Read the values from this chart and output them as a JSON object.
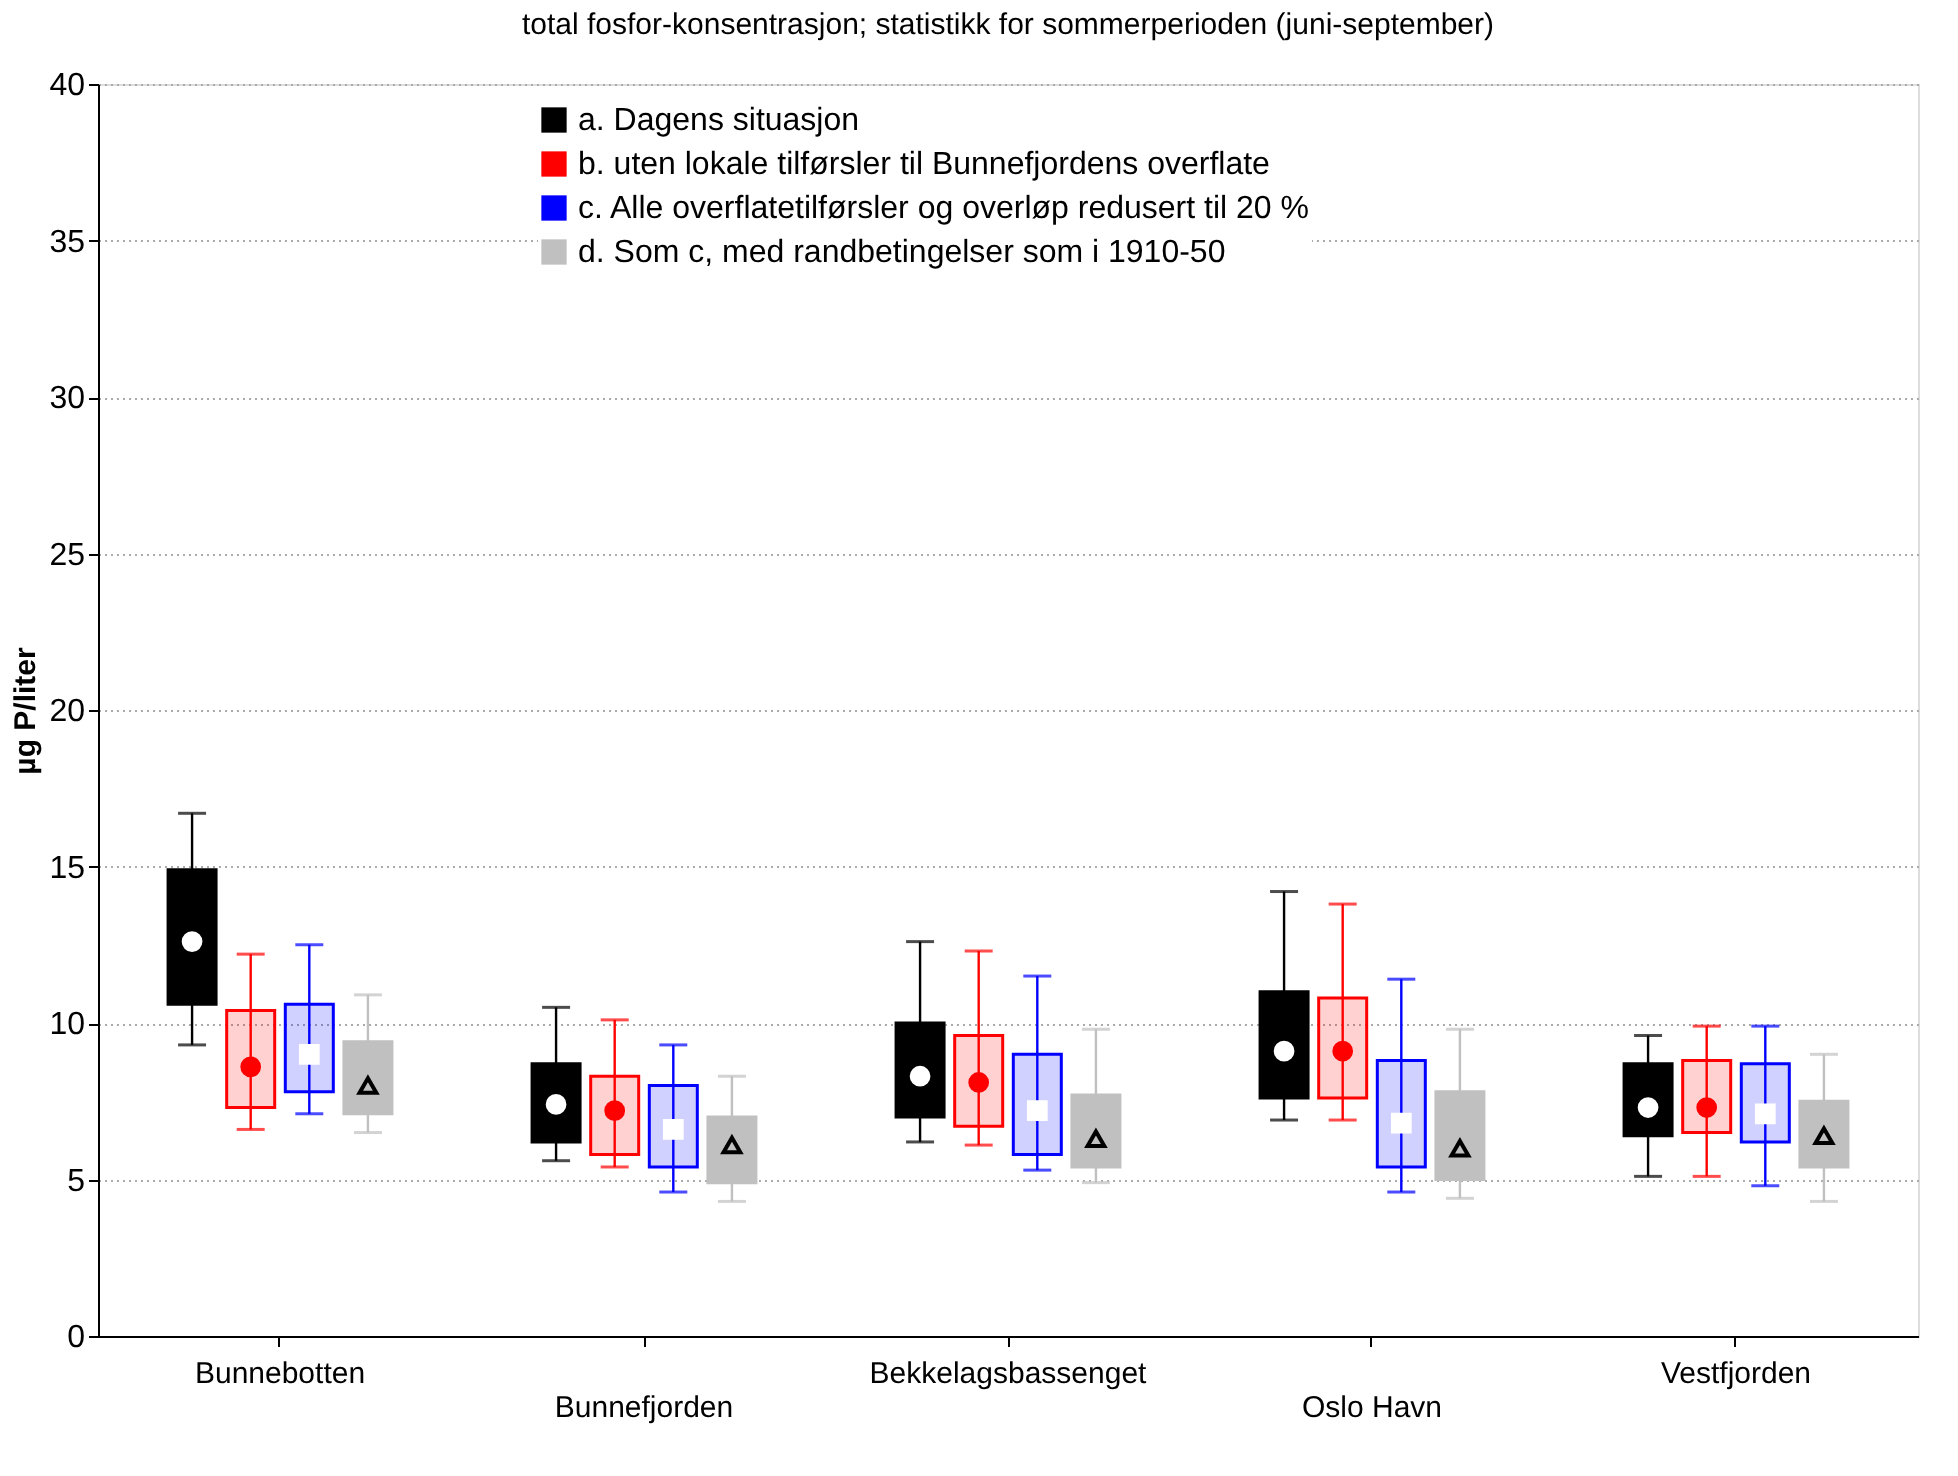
{
  "chart_data": {
    "type": "box",
    "title": "total fosfor-konsentrasjon; statistikk for sommerperioden (juni-september)",
    "ylabel": "µg P/liter",
    "categories": [
      "Bunnebotten",
      "Bunnefjorden",
      "Bekkelagsbassenget",
      "Oslo Havn",
      "Vestfjorden"
    ],
    "ylim": [
      0,
      40
    ],
    "yticks": [
      0,
      5,
      10,
      15,
      20,
      25,
      30,
      35,
      40
    ],
    "grid": "y",
    "legend": "top",
    "series": [
      {
        "name": "a. Dagens situasjon",
        "color": "#000000",
        "marker": "circle",
        "boxes": [
          {
            "low": 9.3,
            "q1": 10.6,
            "median": 12.6,
            "q3": 14.9,
            "high": 16.7
          },
          {
            "low": 5.6,
            "q1": 6.2,
            "median": 7.4,
            "q3": 8.7,
            "high": 10.5
          },
          {
            "low": 6.2,
            "q1": 7.0,
            "median": 8.3,
            "q3": 10.0,
            "high": 12.6
          },
          {
            "low": 6.9,
            "q1": 7.6,
            "median": 9.1,
            "q3": 11.0,
            "high": 14.2
          },
          {
            "low": 5.1,
            "q1": 6.4,
            "median": 7.3,
            "q3": 8.7,
            "high": 9.6
          }
        ]
      },
      {
        "name": "b. uten lokale tilførsler til Bunnefjordens overflate",
        "color": "#ff0000",
        "marker": "circle",
        "boxes": [
          {
            "low": 6.6,
            "q1": 7.3,
            "median": 8.6,
            "q3": 10.4,
            "high": 12.2
          },
          {
            "low": 5.4,
            "q1": 5.8,
            "median": 7.2,
            "q3": 8.3,
            "high": 10.1
          },
          {
            "low": 6.1,
            "q1": 6.7,
            "median": 8.1,
            "q3": 9.6,
            "high": 12.3
          },
          {
            "low": 6.9,
            "q1": 7.6,
            "median": 9.1,
            "q3": 10.8,
            "high": 13.8
          },
          {
            "low": 5.1,
            "q1": 6.5,
            "median": 7.3,
            "q3": 8.8,
            "high": 9.9
          }
        ]
      },
      {
        "name": "c. Alle overflatetilførsler og overløp redusert til 20 %",
        "color": "#0000ff",
        "marker": "square",
        "boxes": [
          {
            "low": 7.1,
            "q1": 7.8,
            "median": 9.0,
            "q3": 10.6,
            "high": 12.5
          },
          {
            "low": 4.6,
            "q1": 5.4,
            "median": 6.6,
            "q3": 8.0,
            "high": 9.3
          },
          {
            "low": 5.3,
            "q1": 5.8,
            "median": 7.2,
            "q3": 9.0,
            "high": 11.5
          },
          {
            "low": 4.6,
            "q1": 5.4,
            "median": 6.8,
            "q3": 8.8,
            "high": 11.4
          },
          {
            "low": 4.8,
            "q1": 6.2,
            "median": 7.1,
            "q3": 8.7,
            "high": 9.9
          }
        ]
      },
      {
        "name": "d. Som c, med randbetingelser som i 1910-50",
        "color": "#c0c0c0",
        "marker": "triangle",
        "boxes": [
          {
            "low": 6.5,
            "q1": 7.1,
            "median": 8.0,
            "q3": 9.4,
            "high": 10.9
          },
          {
            "low": 4.3,
            "q1": 4.9,
            "median": 6.1,
            "q3": 7.0,
            "high": 8.3
          },
          {
            "low": 4.9,
            "q1": 5.4,
            "median": 6.3,
            "q3": 7.7,
            "high": 9.8
          },
          {
            "low": 4.4,
            "q1": 5.0,
            "median": 6.0,
            "q3": 7.8,
            "high": 9.8
          },
          {
            "low": 4.3,
            "q1": 5.4,
            "median": 6.4,
            "q3": 7.5,
            "high": 9.0
          }
        ]
      }
    ]
  }
}
